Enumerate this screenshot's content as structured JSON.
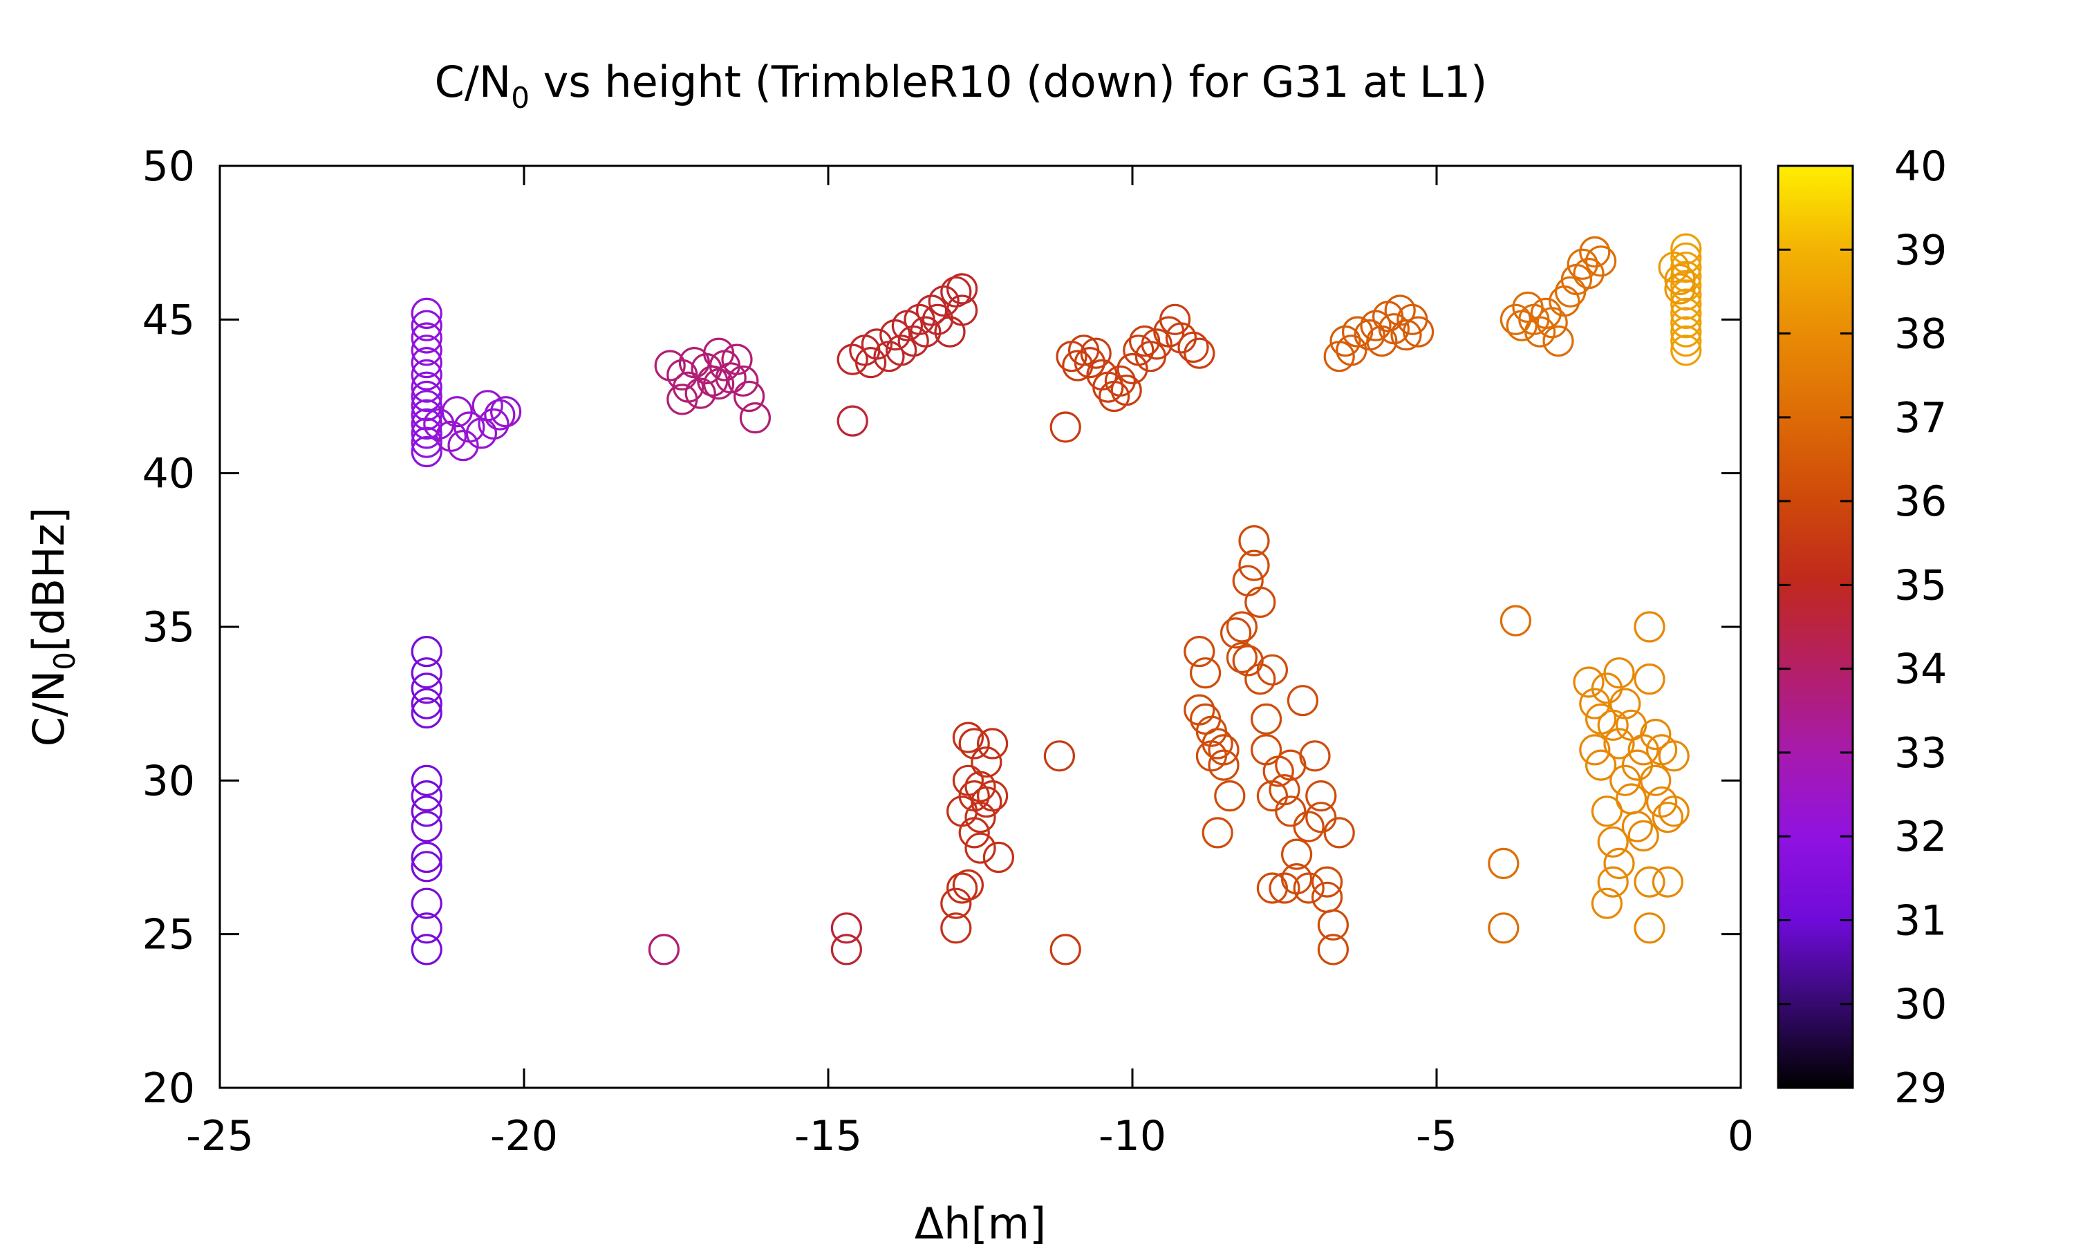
{
  "chart_data": {
    "type": "scatter",
    "title": {
      "before": "C/N",
      "sub": "0",
      "after": " vs height (TrimbleR10 (down) for G31 at L1)"
    },
    "xlabel": "Δh[m]",
    "ylabel": {
      "before": "C/N",
      "sub": "0",
      "after": "[dBHz]"
    },
    "xlim": [
      -25,
      0
    ],
    "ylim": [
      20,
      50
    ],
    "xticks": [
      -25,
      -20,
      -15,
      -10,
      -5,
      0
    ],
    "yticks": [
      20,
      25,
      30,
      35,
      40,
      45,
      50
    ],
    "colorbar": {
      "range": [
        29,
        40
      ],
      "ticks": [
        29,
        30,
        31,
        32,
        33,
        34,
        35,
        36,
        37,
        38,
        39,
        40
      ],
      "palette": [
        "#000000",
        "#3b0a7a",
        "#6e0bd8",
        "#8f12e0",
        "#a61ab0",
        "#b41f6a",
        "#c0291d",
        "#cf4a0a",
        "#dd6c06",
        "#e98c05",
        "#f3b304",
        "#ffee00"
      ],
      "stops": [
        0,
        0.1,
        0.18,
        0.27,
        0.36,
        0.45,
        0.55,
        0.64,
        0.73,
        0.82,
        0.91,
        1
      ]
    },
    "marker": "open-circle",
    "groups": [
      {
        "x": -21.6,
        "cval": 32.0,
        "y": [
          40.7,
          41.0,
          41.3,
          41.6,
          41.9,
          42.2,
          42.5,
          42.8,
          43.2,
          43.6,
          44.0,
          44.4,
          44.8,
          45.2
        ]
      },
      {
        "x": -21.6,
        "cval": 31.3,
        "y": [
          24.5,
          25.2,
          26.0,
          27.2,
          27.5,
          28.5,
          29.0,
          29.5,
          30.0,
          32.2,
          32.5,
          33.0,
          33.5,
          34.2
        ]
      },
      {
        "cval": 32.3,
        "points": [
          [
            -21.4,
            41.6
          ],
          [
            -21.2,
            41.2
          ],
          [
            -21.1,
            42.0
          ],
          [
            -21.0,
            40.9
          ],
          [
            -20.9,
            41.5
          ],
          [
            -20.7,
            41.3
          ],
          [
            -20.6,
            42.2
          ],
          [
            -20.5,
            41.6
          ],
          [
            -20.4,
            41.9
          ],
          [
            -20.3,
            42.0
          ]
        ]
      },
      {
        "cval": 33.8,
        "points": [
          [
            -17.6,
            43.5
          ],
          [
            -17.4,
            42.4
          ],
          [
            -17.4,
            43.2
          ],
          [
            -17.3,
            42.8
          ],
          [
            -17.2,
            43.6
          ],
          [
            -17.1,
            42.6
          ],
          [
            -17.0,
            43.4
          ],
          [
            -16.9,
            43.0
          ],
          [
            -16.8,
            43.9
          ],
          [
            -16.8,
            42.9
          ],
          [
            -16.7,
            43.5
          ],
          [
            -16.6,
            43.1
          ],
          [
            -16.5,
            43.7
          ],
          [
            -16.4,
            43.0
          ],
          [
            -16.3,
            42.5
          ],
          [
            -16.2,
            41.8
          ]
        ]
      },
      {
        "cval": 33.8,
        "points": [
          [
            -17.7,
            24.5
          ]
        ]
      },
      {
        "cval": 34.7,
        "points": [
          [
            -14.6,
            41.7
          ],
          [
            -14.7,
            25.2
          ],
          [
            -14.7,
            24.5
          ]
        ]
      },
      {
        "cval": 34.9,
        "points": [
          [
            -14.6,
            43.7
          ],
          [
            -14.4,
            44.0
          ],
          [
            -14.3,
            43.6
          ],
          [
            -14.2,
            44.2
          ],
          [
            -14.0,
            43.8
          ],
          [
            -13.9,
            44.5
          ],
          [
            -13.8,
            44.0
          ],
          [
            -13.7,
            44.8
          ],
          [
            -13.6,
            44.3
          ],
          [
            -13.5,
            45.0
          ],
          [
            -13.4,
            44.6
          ],
          [
            -13.3,
            45.3
          ],
          [
            -13.2,
            45.0
          ],
          [
            -13.1,
            45.6
          ],
          [
            -13.0,
            44.6
          ],
          [
            -12.9,
            45.9
          ],
          [
            -12.8,
            45.3
          ],
          [
            -12.8,
            46.0
          ]
        ]
      },
      {
        "cval": 35.3,
        "points": [
          [
            -12.9,
            25.2
          ],
          [
            -12.9,
            26.0
          ],
          [
            -12.8,
            26.5
          ],
          [
            -12.8,
            29.0
          ],
          [
            -12.7,
            31.4
          ],
          [
            -12.7,
            30.0
          ],
          [
            -12.6,
            31.2
          ],
          [
            -12.6,
            29.5
          ],
          [
            -12.6,
            28.3
          ],
          [
            -12.5,
            29.8
          ],
          [
            -12.5,
            27.8
          ],
          [
            -12.4,
            29.3
          ],
          [
            -12.4,
            30.6
          ],
          [
            -12.3,
            31.2
          ],
          [
            -12.3,
            29.5
          ],
          [
            -12.2,
            27.5
          ],
          [
            -12.7,
            26.6
          ],
          [
            -12.5,
            28.8
          ]
        ]
      },
      {
        "cval": 35.6,
        "points": [
          [
            -11.2,
            30.8
          ],
          [
            -11.1,
            41.5
          ],
          [
            -11.1,
            24.5
          ]
        ]
      },
      {
        "cval": 35.7,
        "points": [
          [
            -11.0,
            43.8
          ],
          [
            -10.9,
            43.5
          ],
          [
            -10.8,
            44.0
          ],
          [
            -10.7,
            43.6
          ],
          [
            -10.6,
            43.9
          ],
          [
            -10.5,
            43.2
          ],
          [
            -10.4,
            42.8
          ],
          [
            -10.3,
            42.5
          ],
          [
            -10.2,
            43.0
          ],
          [
            -10.1,
            42.7
          ],
          [
            -10.0,
            43.4
          ],
          [
            -9.9,
            44.0
          ],
          [
            -9.8,
            44.3
          ],
          [
            -9.7,
            43.8
          ],
          [
            -9.6,
            44.2
          ],
          [
            -9.4,
            44.6
          ],
          [
            -9.3,
            45.0
          ],
          [
            -9.2,
            44.4
          ],
          [
            -9.0,
            44.1
          ],
          [
            -8.9,
            43.9
          ]
        ]
      },
      {
        "cval": 36.1,
        "points": [
          [
            -8.9,
            34.2
          ],
          [
            -8.9,
            32.3
          ],
          [
            -8.8,
            33.5
          ],
          [
            -8.8,
            32.0
          ],
          [
            -8.7,
            31.6
          ],
          [
            -8.7,
            30.8
          ],
          [
            -8.6,
            31.2
          ],
          [
            -8.6,
            28.3
          ],
          [
            -8.5,
            30.5
          ],
          [
            -8.5,
            31.0
          ],
          [
            -8.4,
            29.5
          ],
          [
            -8.3,
            34.8
          ],
          [
            -8.2,
            34.0
          ],
          [
            -8.2,
            35.0
          ],
          [
            -8.1,
            36.5
          ],
          [
            -8.0,
            37.8
          ],
          [
            -8.0,
            37.0
          ],
          [
            -8.1,
            33.9
          ],
          [
            -7.9,
            35.8
          ],
          [
            -7.9,
            33.3
          ],
          [
            -7.8,
            32.0
          ],
          [
            -7.8,
            31.0
          ],
          [
            -7.7,
            29.5
          ],
          [
            -7.7,
            26.5
          ],
          [
            -7.7,
            33.6
          ],
          [
            -7.6,
            30.3
          ],
          [
            -7.5,
            29.7
          ],
          [
            -7.5,
            26.5
          ],
          [
            -7.4,
            30.5
          ],
          [
            -7.4,
            29.0
          ],
          [
            -7.3,
            27.6
          ],
          [
            -7.3,
            26.8
          ],
          [
            -7.2,
            32.6
          ],
          [
            -7.1,
            28.5
          ],
          [
            -7.1,
            26.5
          ],
          [
            -7.0,
            30.8
          ],
          [
            -6.9,
            29.5
          ],
          [
            -6.9,
            28.8
          ],
          [
            -6.8,
            26.7
          ],
          [
            -6.8,
            26.2
          ],
          [
            -6.7,
            25.3
          ],
          [
            -6.7,
            24.5
          ],
          [
            -6.6,
            28.3
          ]
        ]
      },
      {
        "cval": 36.6,
        "points": [
          [
            -6.6,
            43.8
          ],
          [
            -6.5,
            44.3
          ],
          [
            -6.4,
            44.0
          ],
          [
            -6.3,
            44.6
          ],
          [
            -6.1,
            44.5
          ],
          [
            -6.0,
            44.8
          ],
          [
            -5.9,
            44.3
          ],
          [
            -5.8,
            45.1
          ],
          [
            -5.7,
            44.7
          ],
          [
            -5.6,
            45.3
          ],
          [
            -5.5,
            44.5
          ],
          [
            -5.4,
            45.0
          ],
          [
            -5.3,
            44.6
          ]
        ]
      },
      {
        "cval": 37.1,
        "points": [
          [
            -3.7,
            35.2
          ],
          [
            -3.9,
            27.3
          ],
          [
            -3.9,
            25.2
          ]
        ]
      },
      {
        "cval": 37.1,
        "points": [
          [
            -3.7,
            45.0
          ],
          [
            -3.6,
            44.8
          ],
          [
            -3.5,
            45.4
          ],
          [
            -3.4,
            45.0
          ],
          [
            -3.3,
            44.6
          ],
          [
            -3.2,
            45.2
          ],
          [
            -3.1,
            44.9
          ],
          [
            -3.0,
            44.3
          ],
          [
            -2.9,
            45.6
          ],
          [
            -2.8,
            45.9
          ],
          [
            -2.7,
            46.3
          ],
          [
            -2.6,
            46.8
          ],
          [
            -2.5,
            46.5
          ],
          [
            -2.4,
            47.2
          ],
          [
            -2.3,
            46.9
          ]
        ]
      },
      {
        "cval": 37.9,
        "points": [
          [
            -2.5,
            33.2
          ],
          [
            -2.4,
            32.5
          ],
          [
            -2.4,
            31.0
          ],
          [
            -2.3,
            32.0
          ],
          [
            -2.3,
            30.5
          ],
          [
            -2.2,
            33.0
          ],
          [
            -2.2,
            29.0
          ],
          [
            -2.2,
            26.0
          ],
          [
            -2.1,
            31.8
          ],
          [
            -2.1,
            28.0
          ],
          [
            -2.1,
            26.7
          ],
          [
            -2.0,
            33.5
          ],
          [
            -2.0,
            31.2
          ],
          [
            -2.0,
            27.3
          ],
          [
            -1.9,
            32.5
          ],
          [
            -1.9,
            30.0
          ],
          [
            -1.8,
            31.8
          ],
          [
            -1.8,
            29.4
          ],
          [
            -1.7,
            30.5
          ],
          [
            -1.7,
            28.5
          ],
          [
            -1.6,
            31.0
          ],
          [
            -1.6,
            28.2
          ],
          [
            -1.5,
            33.3
          ],
          [
            -1.5,
            26.7
          ],
          [
            -1.5,
            25.2
          ],
          [
            -1.4,
            31.5
          ],
          [
            -1.4,
            30.0
          ],
          [
            -1.3,
            29.3
          ],
          [
            -1.3,
            31.0
          ],
          [
            -1.2,
            28.8
          ],
          [
            -1.2,
            26.7
          ],
          [
            -1.1,
            30.8
          ],
          [
            -1.1,
            29.0
          ],
          [
            -1.5,
            35.0
          ]
        ]
      },
      {
        "x": -0.9,
        "cval": 38.5,
        "y": [
          44.0,
          44.3,
          44.6,
          44.9,
          45.2,
          45.5,
          45.8,
          46.1,
          46.4,
          46.7,
          47.0,
          47.3
        ]
      },
      {
        "cval": 38.3,
        "points": [
          [
            -1.0,
            46.3
          ],
          [
            -1.1,
            46.7
          ],
          [
            -1.0,
            46.0
          ]
        ]
      }
    ]
  }
}
